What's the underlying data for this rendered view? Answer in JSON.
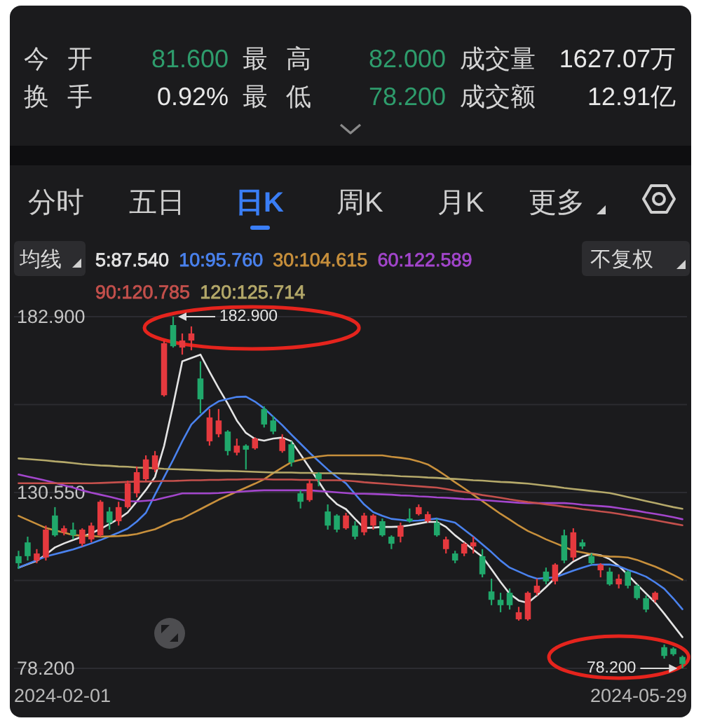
{
  "chart_data": {
    "type": "candlestick",
    "categories": [
      null,
      null,
      null,
      null,
      null,
      null,
      null,
      null,
      null,
      null,
      null,
      null,
      null,
      null,
      null,
      null,
      null,
      null,
      null,
      null,
      null,
      null,
      null,
      null,
      null,
      null,
      null,
      null,
      null,
      null,
      null,
      null,
      null,
      null,
      null,
      null,
      null,
      null,
      null,
      null,
      null,
      null,
      null,
      null,
      null,
      null,
      null,
      null,
      null,
      null,
      null,
      null,
      null,
      null,
      null,
      null,
      null,
      null,
      null,
      null,
      null,
      null,
      null,
      null,
      null,
      null,
      null,
      null,
      null,
      null,
      null,
      null,
      null,
      null
    ],
    "ohlc": [
      [
        111.6,
        113.2,
        107.8,
        109.5
      ],
      [
        115.7,
        117.4,
        110.3,
        111.6
      ],
      [
        110.3,
        113.7,
        109.5,
        112.4
      ],
      [
        111.2,
        120.7,
        110.3,
        119.5
      ],
      [
        123.7,
        126.2,
        117.4,
        117.8
      ],
      [
        118.7,
        120.7,
        117.8,
        119.9
      ],
      [
        119.5,
        121.6,
        116.6,
        117.8
      ],
      [
        115.3,
        119.9,
        114.5,
        119.5
      ],
      [
        116.6,
        121.6,
        115.7,
        120.7
      ],
      [
        117.8,
        128.3,
        117.4,
        127.8
      ],
      [
        124.9,
        126.2,
        119.5,
        121.6
      ],
      [
        122.0,
        127.8,
        120.7,
        126.2
      ],
      [
        126.2,
        134.1,
        125.8,
        133.3
      ],
      [
        130.3,
        138.3,
        129.1,
        136.6
      ],
      [
        134.5,
        141.6,
        134.1,
        140.4
      ],
      [
        137.4,
        142.9,
        136.6,
        141.6
      ],
      [
        159.5,
        175.8,
        159.1,
        175.0
      ],
      [
        180.4,
        182.9,
        173.7,
        174.1
      ],
      [
        173.7,
        177.9,
        171.6,
        175.8
      ],
      [
        175.8,
        180.0,
        172.9,
        177.9
      ],
      [
        164.5,
        169.6,
        154.1,
        158.3
      ],
      [
        145.8,
        155.4,
        144.5,
        152.9
      ],
      [
        147.9,
        155.4,
        147.0,
        152.0
      ],
      [
        148.7,
        149.1,
        141.6,
        142.9
      ],
      [
        142.4,
        146.6,
        141.6,
        144.5
      ],
      [
        144.5,
        144.9,
        137.4,
        143.3
      ],
      [
        143.7,
        147.0,
        143.3,
        146.6
      ],
      [
        155.4,
        156.2,
        149.9,
        150.8
      ],
      [
        152.0,
        153.3,
        147.9,
        148.7
      ],
      [
        142.9,
        147.9,
        142.4,
        146.6
      ],
      [
        144.9,
        145.8,
        138.3,
        139.5
      ],
      [
        130.3,
        131.2,
        125.8,
        127.8
      ],
      [
        128.3,
        134.5,
        127.8,
        133.3
      ],
      [
        136.2,
        136.6,
        132.4,
        134.5
      ],
      [
        124.9,
        127.0,
        119.5,
        120.7
      ],
      [
        123.7,
        124.1,
        118.7,
        119.5
      ],
      [
        119.9,
        124.5,
        119.5,
        123.7
      ],
      [
        120.7,
        122.0,
        116.6,
        117.4
      ],
      [
        118.7,
        124.5,
        117.8,
        123.7
      ],
      [
        120.7,
        124.1,
        119.5,
        123.7
      ],
      [
        122.0,
        122.8,
        117.4,
        117.8
      ],
      [
        117.4,
        117.8,
        113.7,
        115.3
      ],
      [
        117.4,
        121.6,
        115.7,
        120.7
      ],
      [
        122.8,
        125.8,
        121.6,
        122.0
      ],
      [
        124.1,
        127.0,
        123.7,
        126.2
      ],
      [
        122.0,
        124.9,
        121.6,
        124.1
      ],
      [
        121.6,
        122.8,
        117.4,
        117.8
      ],
      [
        113.7,
        117.4,
        112.4,
        116.6
      ],
      [
        112.4,
        113.2,
        109.5,
        110.3
      ],
      [
        112.4,
        115.7,
        111.6,
        115.3
      ],
      [
        114.5,
        117.4,
        112.4,
        115.7
      ],
      [
        111.6,
        113.7,
        105.3,
        106.2
      ],
      [
        101.1,
        104.9,
        97.0,
        98.6
      ],
      [
        98.6,
        100.7,
        94.9,
        97.0
      ],
      [
        100.7,
        102.0,
        95.7,
        97.0
      ],
      [
        92.8,
        96.5,
        92.4,
        94.9
      ],
      [
        92.8,
        101.1,
        92.4,
        100.7
      ],
      [
        100.7,
        104.9,
        99.9,
        102.8
      ],
      [
        107.0,
        108.2,
        103.2,
        104.1
      ],
      [
        104.1,
        109.5,
        103.2,
        109.1
      ],
      [
        117.8,
        119.5,
        109.5,
        110.3
      ],
      [
        111.2,
        119.9,
        110.3,
        118.7
      ],
      [
        115.7,
        116.6,
        113.7,
        114.5
      ],
      [
        111.6,
        112.4,
        109.1,
        109.5
      ],
      [
        107.4,
        109.5,
        105.3,
        109.1
      ],
      [
        107.0,
        108.2,
        102.8,
        103.2
      ],
      [
        103.2,
        106.2,
        102.0,
        104.9
      ],
      [
        107.0,
        107.4,
        102.0,
        102.8
      ],
      [
        102.8,
        103.2,
        98.6,
        99.1
      ],
      [
        99.1,
        99.9,
        94.9,
        95.7
      ],
      [
        98.6,
        101.1,
        97.8,
        100.7
      ],
      [
        84.5,
        85.3,
        81.1,
        81.9
      ],
      [
        84.1,
        84.5,
        81.9,
        82.4
      ],
      [
        81.6,
        82.0,
        78.2,
        79.5
      ]
    ],
    "colors": [
      "#20a86b",
      "#20a86b",
      "#e5393e",
      "#e5393e",
      "#20a86b",
      "#e5393e",
      "#20a86b",
      "#e5393e",
      "#e5393e",
      "#e5393e",
      "#20a86b",
      "#e5393e",
      "#e5393e",
      "#e5393e",
      "#e5393e",
      "#e5393e",
      "#e5393e",
      "#20a86b",
      "#e5393e",
      "#e5393e",
      "#20a86b",
      "#e5393e",
      "#e5393e",
      "#20a86b",
      "#e5393e",
      "#20a86b",
      "#e5393e",
      "#20a86b",
      "#20a86b",
      "#e5393e",
      "#20a86b",
      "#20a86b",
      "#e5393e",
      "#20a86b",
      "#20a86b",
      "#20a86b",
      "#e5393e",
      "#20a86b",
      "#e5393e",
      "#e5393e",
      "#20a86b",
      "#20a86b",
      "#e5393e",
      "#20a86b",
      "#e5393e",
      "#e5393e",
      "#20a86b",
      "#e5393e",
      "#20a86b",
      "#e5393e",
      "#e5393e",
      "#20a86b",
      "#20a86b",
      "#20a86b",
      "#20a86b",
      "#e5393e",
      "#e5393e",
      "#e5393e",
      "#20a86b",
      "#e5393e",
      "#20a86b",
      "#e5393e",
      "#20a86b",
      "#20a86b",
      "#e5393e",
      "#20a86b",
      "#e5393e",
      "#20a86b",
      "#20a86b",
      "#20a86b",
      "#e5393e",
      "#20a86b",
      "#20a86b",
      "#20a86b"
    ],
    "series": [
      {
        "name": "5:87.540",
        "type": "line",
        "color": "#e4e4e4",
        "values": [
          108.2,
          109.2,
          110.2,
          112.1,
          114.2,
          115.4,
          116.4,
          117.4,
          118.4,
          119.7,
          121.2,
          122.7,
          124.6,
          127.9,
          131.3,
          135.2,
          144.4,
          156.6,
          169.6,
          170.6,
          171.6,
          166.5,
          161.6,
          157.0,
          152.0,
          148.3,
          146.5,
          146.0,
          146.6,
          146.9,
          145.8,
          141.9,
          137.9,
          133.8,
          129.7,
          127.1,
          125.6,
          122.7,
          120.0,
          120.1,
          120.3,
          120.3,
          120.4,
          120.8,
          121.3,
          121.8,
          121.8,
          120.3,
          117.8,
          115.7,
          113.5,
          111.4,
          107.7,
          103.9,
          100.4,
          98.4,
          97.7,
          99.9,
          102.4,
          105.1,
          107.8,
          110.0,
          111.4,
          112.3,
          111.9,
          110.7,
          108.7,
          106.0,
          103.2,
          100.5,
          97.8,
          94.5,
          91.0,
          87.5
        ]
      },
      {
        "name": "10:95.760",
        "type": "line",
        "color": "#4a82ee",
        "values": [
          108.2,
          109.3,
          110.4,
          111.5,
          112.2,
          112.9,
          113.6,
          114.5,
          115.4,
          116.4,
          117.5,
          118.6,
          119.8,
          121.9,
          124.5,
          129.9,
          135.1,
          140.3,
          145.8,
          150.8,
          153.5,
          156.0,
          157.7,
          158.4,
          159.0,
          159.1,
          157.6,
          155.6,
          153.1,
          150.6,
          147.8,
          145.1,
          142.4,
          139.9,
          137.4,
          135.2,
          133.3,
          130.1,
          127.0,
          124.7,
          123.6,
          122.7,
          122.4,
          122.1,
          122.2,
          122.5,
          122.8,
          122.2,
          121.6,
          119.5,
          117.4,
          115.1,
          112.8,
          110.3,
          108.2,
          107.0,
          105.8,
          104.9,
          105.1,
          105.3,
          106.3,
          107.3,
          108.2,
          109.0,
          109.1,
          109.1,
          108.6,
          107.5,
          106.6,
          105.5,
          103.8,
          101.9,
          99.0,
          95.8
        ]
      },
      {
        "name": "30:104.615",
        "type": "line",
        "color": "#c8903c",
        "values": [
          123.6,
          122.4,
          121.2,
          120.0,
          119.3,
          118.6,
          117.9,
          117.7,
          117.6,
          117.4,
          117.5,
          117.6,
          117.8,
          118.2,
          118.9,
          119.6,
          120.8,
          122.1,
          122.8,
          124.2,
          125.6,
          127.0,
          128.4,
          129.6,
          130.8,
          132.0,
          133.2,
          134.5,
          136.3,
          138.0,
          139.6,
          140.3,
          140.9,
          141.3,
          141.6,
          141.6,
          141.6,
          141.6,
          141.6,
          141.6,
          141.6,
          141.2,
          140.9,
          140.5,
          139.8,
          138.9,
          137.3,
          135.5,
          133.6,
          131.8,
          129.9,
          128.0,
          126.1,
          124.2,
          122.5,
          120.7,
          119.1,
          117.9,
          116.6,
          115.5,
          114.4,
          113.2,
          112.7,
          112.2,
          111.7,
          111.5,
          111.4,
          111.2,
          110.5,
          109.5,
          108.5,
          107.3,
          106.0,
          104.6
        ]
      },
      {
        "name": "60:122.589",
        "type": "line",
        "color": "#a346cc",
        "values": [
          135.9,
          135.3,
          134.7,
          134.1,
          133.4,
          132.7,
          132.0,
          131.2,
          130.5,
          129.9,
          129.3,
          128.6,
          128.0,
          127.9,
          128.1,
          128.3,
          129.0,
          129.6,
          130.3,
          130.3,
          130.3,
          130.3,
          130.4,
          130.6,
          130.7,
          130.9,
          131.1,
          131.2,
          131.2,
          131.2,
          131.2,
          131.2,
          131.2,
          131.0,
          130.8,
          130.6,
          130.4,
          130.2,
          130.2,
          130.1,
          130.0,
          129.9,
          129.7,
          129.6,
          129.4,
          129.3,
          129.1,
          129.0,
          128.8,
          128.6,
          128.5,
          128.3,
          128.1,
          127.9,
          127.7,
          127.5,
          127.4,
          127.4,
          127.4,
          127.4,
          127.4,
          127.2,
          126.9,
          126.7,
          126.5,
          126.3,
          125.9,
          125.5,
          125.1,
          124.6,
          124.2,
          123.7,
          123.2,
          122.6
        ]
      },
      {
        "name": "90:120.785",
        "type": "line",
        "color": "#c4504c",
        "values": [
          133.3,
          133.3,
          133.3,
          133.3,
          133.3,
          133.3,
          133.3,
          133.3,
          133.3,
          133.4,
          133.5,
          133.6,
          133.7,
          133.8,
          133.8,
          133.9,
          134.0,
          134.0,
          134.1,
          134.2,
          134.2,
          134.3,
          134.3,
          134.4,
          134.4,
          134.5,
          134.5,
          134.5,
          134.4,
          134.4,
          134.4,
          134.3,
          134.3,
          134.2,
          134.2,
          134.2,
          134.1,
          133.9,
          133.6,
          133.4,
          133.2,
          133.0,
          132.8,
          132.6,
          132.4,
          132.2,
          132.0,
          131.6,
          131.1,
          130.7,
          130.3,
          129.8,
          129.4,
          129.0,
          128.5,
          128.1,
          127.7,
          127.4,
          127.0,
          126.7,
          126.3,
          126.0,
          125.6,
          125.3,
          124.9,
          124.6,
          124.2,
          123.7,
          123.3,
          122.8,
          122.3,
          121.8,
          121.3,
          120.8
        ]
      },
      {
        "name": "120:125.714",
        "type": "line",
        "color": "#b5a96a",
        "values": [
          140.7,
          140.5,
          140.3,
          140.1,
          139.8,
          139.6,
          139.3,
          139.0,
          138.8,
          138.6,
          138.5,
          138.3,
          138.2,
          138.0,
          137.9,
          137.8,
          137.6,
          137.5,
          137.4,
          137.3,
          137.2,
          137.1,
          137.0,
          137.0,
          136.9,
          136.8,
          136.7,
          136.6,
          136.5,
          136.5,
          136.5,
          136.4,
          136.4,
          136.3,
          136.3,
          136.3,
          136.2,
          136.1,
          136.0,
          135.9,
          135.7,
          135.6,
          135.4,
          135.3,
          135.2,
          135.0,
          134.9,
          134.7,
          134.6,
          134.4,
          134.2,
          134.1,
          133.9,
          133.7,
          133.6,
          133.4,
          133.2,
          132.9,
          132.6,
          132.3,
          131.9,
          131.6,
          131.3,
          131.0,
          130.7,
          130.4,
          129.8,
          129.2,
          128.6,
          128.0,
          127.4,
          126.8,
          126.2,
          125.7
        ]
      }
    ],
    "ylim": [
      78.2,
      182.9
    ],
    "yticks": [
      {
        "value": 182.9,
        "label": "182.900"
      },
      {
        "value": 156.725,
        "label": null
      },
      {
        "value": 130.55,
        "label": "130.550"
      },
      {
        "value": 104.375,
        "label": null
      },
      {
        "value": 78.2,
        "label": "78.200"
      }
    ],
    "grid": "y",
    "legend": "top left",
    "legend_title": "均线",
    "annotations": [
      "今 开",
      "81.600",
      "最 高",
      "82.000",
      "成交量",
      "1627.07万",
      "换 手",
      "0.92%",
      "最 低",
      "78.200",
      "成交额",
      "12.91亿",
      "分时",
      "五日",
      "日K",
      "周K",
      "月K",
      "更多",
      "不复权",
      "2024-02-01",
      "2024-05-29",
      "182.900",
      "78.200"
    ]
  }
}
